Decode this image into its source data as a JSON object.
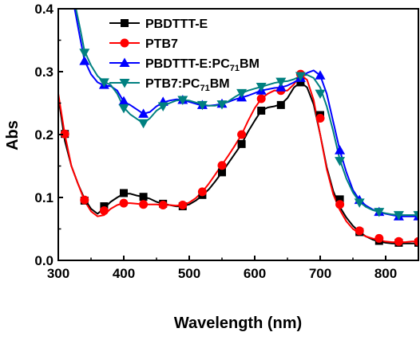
{
  "chart_data": {
    "type": "line",
    "title": "",
    "xlabel": "Wavelength (nm)",
    "ylabel": "Abs",
    "xlim": [
      300,
      850
    ],
    "ylim": [
      0.0,
      0.4
    ],
    "x_ticks": [
      "300",
      "400",
      "500",
      "600",
      "700",
      "800"
    ],
    "y_ticks": [
      "0.0",
      "0.1",
      "0.2",
      "0.3",
      "0.4"
    ],
    "grid": false,
    "legend_position": "top-left",
    "series": [
      {
        "name": "PBDTTT-E",
        "name_parts": [
          "PBDTTT-E",
          "",
          ""
        ],
        "color": "#000000",
        "marker": "square",
        "curve": [
          [
            300,
            0.26
          ],
          [
            310,
            0.19
          ],
          [
            320,
            0.15
          ],
          [
            330,
            0.122
          ],
          [
            340,
            0.098
          ],
          [
            350,
            0.082
          ],
          [
            360,
            0.074
          ],
          [
            370,
            0.083
          ],
          [
            380,
            0.093
          ],
          [
            390,
            0.1
          ],
          [
            400,
            0.106
          ],
          [
            410,
            0.106
          ],
          [
            420,
            0.103
          ],
          [
            430,
            0.101
          ],
          [
            440,
            0.098
          ],
          [
            450,
            0.093
          ],
          [
            460,
            0.09
          ],
          [
            470,
            0.088
          ],
          [
            480,
            0.086
          ],
          [
            490,
            0.086
          ],
          [
            500,
            0.089
          ],
          [
            510,
            0.095
          ],
          [
            520,
            0.103
          ],
          [
            530,
            0.113
          ],
          [
            540,
            0.126
          ],
          [
            550,
            0.14
          ],
          [
            560,
            0.155
          ],
          [
            570,
            0.17
          ],
          [
            580,
            0.185
          ],
          [
            590,
            0.205
          ],
          [
            600,
            0.222
          ],
          [
            610,
            0.238
          ],
          [
            620,
            0.243
          ],
          [
            630,
            0.245
          ],
          [
            640,
            0.248
          ],
          [
            650,
            0.258
          ],
          [
            660,
            0.275
          ],
          [
            670,
            0.283
          ],
          [
            680,
            0.275
          ],
          [
            690,
            0.248
          ],
          [
            700,
            0.2
          ],
          [
            710,
            0.148
          ],
          [
            720,
            0.11
          ],
          [
            730,
            0.085
          ],
          [
            740,
            0.068
          ],
          [
            750,
            0.055
          ],
          [
            760,
            0.045
          ],
          [
            770,
            0.038
          ],
          [
            780,
            0.033
          ],
          [
            790,
            0.03
          ],
          [
            800,
            0.028
          ],
          [
            810,
            0.027
          ],
          [
            820,
            0.027
          ],
          [
            830,
            0.027
          ],
          [
            840,
            0.027
          ],
          [
            850,
            0.027
          ]
        ],
        "markers": [
          [
            310,
            0.201
          ],
          [
            340,
            0.095
          ],
          [
            370,
            0.086
          ],
          [
            400,
            0.107
          ],
          [
            430,
            0.101
          ],
          [
            460,
            0.09
          ],
          [
            490,
            0.086
          ],
          [
            520,
            0.104
          ],
          [
            550,
            0.14
          ],
          [
            580,
            0.185
          ],
          [
            610,
            0.238
          ],
          [
            640,
            0.247
          ],
          [
            670,
            0.283
          ],
          [
            700,
            0.231
          ],
          [
            730,
            0.097
          ],
          [
            760,
            0.045
          ],
          [
            790,
            0.031
          ],
          [
            820,
            0.028
          ],
          [
            850,
            0.028
          ]
        ]
      },
      {
        "name": "PTB7",
        "name_parts": [
          "PTB7",
          "",
          ""
        ],
        "color": "#ff0000",
        "marker": "circle",
        "curve": [
          [
            300,
            0.265
          ],
          [
            310,
            0.2
          ],
          [
            320,
            0.15
          ],
          [
            330,
            0.122
          ],
          [
            340,
            0.095
          ],
          [
            350,
            0.078
          ],
          [
            360,
            0.07
          ],
          [
            370,
            0.072
          ],
          [
            380,
            0.082
          ],
          [
            390,
            0.088
          ],
          [
            400,
            0.091
          ],
          [
            410,
            0.091
          ],
          [
            420,
            0.09
          ],
          [
            430,
            0.089
          ],
          [
            440,
            0.089
          ],
          [
            450,
            0.089
          ],
          [
            460,
            0.088
          ],
          [
            470,
            0.088
          ],
          [
            480,
            0.087
          ],
          [
            490,
            0.088
          ],
          [
            500,
            0.092
          ],
          [
            510,
            0.099
          ],
          [
            520,
            0.109
          ],
          [
            530,
            0.122
          ],
          [
            540,
            0.137
          ],
          [
            550,
            0.152
          ],
          [
            560,
            0.167
          ],
          [
            570,
            0.183
          ],
          [
            580,
            0.2
          ],
          [
            590,
            0.222
          ],
          [
            600,
            0.242
          ],
          [
            610,
            0.257
          ],
          [
            620,
            0.265
          ],
          [
            630,
            0.27
          ],
          [
            640,
            0.27
          ],
          [
            650,
            0.27
          ],
          [
            660,
            0.28
          ],
          [
            670,
            0.295
          ],
          [
            680,
            0.287
          ],
          [
            690,
            0.255
          ],
          [
            700,
            0.2
          ],
          [
            710,
            0.145
          ],
          [
            720,
            0.105
          ],
          [
            730,
            0.08
          ],
          [
            740,
            0.062
          ],
          [
            750,
            0.05
          ],
          [
            760,
            0.043
          ],
          [
            770,
            0.038
          ],
          [
            780,
            0.035
          ],
          [
            790,
            0.032
          ],
          [
            800,
            0.03
          ],
          [
            810,
            0.029
          ],
          [
            820,
            0.029
          ],
          [
            830,
            0.029
          ],
          [
            840,
            0.03
          ],
          [
            850,
            0.03
          ]
        ],
        "markers": [
          [
            310,
            0.201
          ],
          [
            340,
            0.096
          ],
          [
            370,
            0.079
          ],
          [
            400,
            0.091
          ],
          [
            430,
            0.089
          ],
          [
            460,
            0.088
          ],
          [
            490,
            0.088
          ],
          [
            520,
            0.109
          ],
          [
            550,
            0.151
          ],
          [
            580,
            0.2
          ],
          [
            610,
            0.257
          ],
          [
            640,
            0.27
          ],
          [
            670,
            0.296
          ],
          [
            700,
            0.226
          ],
          [
            730,
            0.089
          ],
          [
            760,
            0.047
          ],
          [
            790,
            0.035
          ],
          [
            820,
            0.03
          ],
          [
            850,
            0.03
          ]
        ]
      },
      {
        "name": "PBDTTT-E:PC71BM",
        "name_parts": [
          "PBDTTT-E:PC",
          "71",
          "BM"
        ],
        "color": "#0000ff",
        "marker": "triangle-up",
        "curve": [
          [
            315,
            0.45
          ],
          [
            325,
            0.4
          ],
          [
            333,
            0.355
          ],
          [
            340,
            0.318
          ],
          [
            350,
            0.296
          ],
          [
            360,
            0.283
          ],
          [
            370,
            0.278
          ],
          [
            380,
            0.277
          ],
          [
            390,
            0.27
          ],
          [
            400,
            0.252
          ],
          [
            410,
            0.247
          ],
          [
            420,
            0.24
          ],
          [
            430,
            0.233
          ],
          [
            440,
            0.236
          ],
          [
            450,
            0.245
          ],
          [
            460,
            0.251
          ],
          [
            470,
            0.254
          ],
          [
            480,
            0.256
          ],
          [
            490,
            0.255
          ],
          [
            500,
            0.252
          ],
          [
            510,
            0.249
          ],
          [
            520,
            0.246
          ],
          [
            530,
            0.246
          ],
          [
            540,
            0.247
          ],
          [
            550,
            0.249
          ],
          [
            560,
            0.252
          ],
          [
            570,
            0.256
          ],
          [
            580,
            0.259
          ],
          [
            590,
            0.262
          ],
          [
            600,
            0.266
          ],
          [
            610,
            0.27
          ],
          [
            620,
            0.272
          ],
          [
            630,
            0.274
          ],
          [
            640,
            0.275
          ],
          [
            650,
            0.278
          ],
          [
            660,
            0.283
          ],
          [
            670,
            0.29
          ],
          [
            680,
            0.298
          ],
          [
            690,
            0.302
          ],
          [
            700,
            0.294
          ],
          [
            710,
            0.265
          ],
          [
            720,
            0.22
          ],
          [
            730,
            0.175
          ],
          [
            740,
            0.14
          ],
          [
            750,
            0.112
          ],
          [
            760,
            0.096
          ],
          [
            770,
            0.087
          ],
          [
            780,
            0.081
          ],
          [
            790,
            0.077
          ],
          [
            800,
            0.074
          ],
          [
            810,
            0.072
          ],
          [
            820,
            0.07
          ],
          [
            830,
            0.07
          ],
          [
            840,
            0.07
          ],
          [
            850,
            0.07
          ]
        ],
        "markers": [
          [
            340,
            0.317
          ],
          [
            370,
            0.279
          ],
          [
            400,
            0.253
          ],
          [
            430,
            0.233
          ],
          [
            460,
            0.252
          ],
          [
            490,
            0.255
          ],
          [
            520,
            0.247
          ],
          [
            550,
            0.249
          ],
          [
            580,
            0.259
          ],
          [
            610,
            0.27
          ],
          [
            640,
            0.275
          ],
          [
            670,
            0.29
          ],
          [
            700,
            0.294
          ],
          [
            730,
            0.175
          ],
          [
            760,
            0.096
          ],
          [
            790,
            0.077
          ],
          [
            820,
            0.07
          ],
          [
            850,
            0.07
          ]
        ]
      },
      {
        "name": "PTB7:PC71BM",
        "name_parts": [
          "PTB7:PC",
          "71",
          "BM"
        ],
        "color": "#008080",
        "marker": "triangle-down",
        "curve": [
          [
            315,
            0.45
          ],
          [
            325,
            0.41
          ],
          [
            333,
            0.37
          ],
          [
            340,
            0.333
          ],
          [
            350,
            0.31
          ],
          [
            360,
            0.293
          ],
          [
            370,
            0.284
          ],
          [
            380,
            0.279
          ],
          [
            390,
            0.265
          ],
          [
            400,
            0.243
          ],
          [
            410,
            0.232
          ],
          [
            420,
            0.225
          ],
          [
            430,
            0.218
          ],
          [
            440,
            0.226
          ],
          [
            450,
            0.238
          ],
          [
            460,
            0.245
          ],
          [
            470,
            0.25
          ],
          [
            480,
            0.254
          ],
          [
            490,
            0.255
          ],
          [
            500,
            0.254
          ],
          [
            510,
            0.251
          ],
          [
            520,
            0.248
          ],
          [
            530,
            0.246
          ],
          [
            540,
            0.246
          ],
          [
            550,
            0.248
          ],
          [
            560,
            0.253
          ],
          [
            570,
            0.26
          ],
          [
            580,
            0.266
          ],
          [
            590,
            0.27
          ],
          [
            600,
            0.273
          ],
          [
            610,
            0.276
          ],
          [
            620,
            0.279
          ],
          [
            630,
            0.282
          ],
          [
            640,
            0.284
          ],
          [
            650,
            0.285
          ],
          [
            660,
            0.288
          ],
          [
            670,
            0.293
          ],
          [
            680,
            0.295
          ],
          [
            690,
            0.29
          ],
          [
            700,
            0.275
          ],
          [
            710,
            0.245
          ],
          [
            720,
            0.205
          ],
          [
            730,
            0.16
          ],
          [
            740,
            0.13
          ],
          [
            750,
            0.108
          ],
          [
            760,
            0.093
          ],
          [
            770,
            0.085
          ],
          [
            780,
            0.08
          ],
          [
            790,
            0.077
          ],
          [
            800,
            0.075
          ],
          [
            810,
            0.073
          ],
          [
            820,
            0.072
          ],
          [
            830,
            0.072
          ],
          [
            840,
            0.072
          ],
          [
            850,
            0.072
          ]
        ],
        "markers": [
          [
            340,
            0.33
          ],
          [
            370,
            0.283
          ],
          [
            400,
            0.242
          ],
          [
            430,
            0.218
          ],
          [
            460,
            0.245
          ],
          [
            490,
            0.255
          ],
          [
            520,
            0.247
          ],
          [
            550,
            0.248
          ],
          [
            580,
            0.266
          ],
          [
            610,
            0.276
          ],
          [
            640,
            0.284
          ],
          [
            670,
            0.293
          ],
          [
            700,
            0.265
          ],
          [
            730,
            0.158
          ],
          [
            760,
            0.092
          ],
          [
            790,
            0.077
          ],
          [
            820,
            0.072
          ],
          [
            850,
            0.072
          ]
        ]
      }
    ]
  }
}
